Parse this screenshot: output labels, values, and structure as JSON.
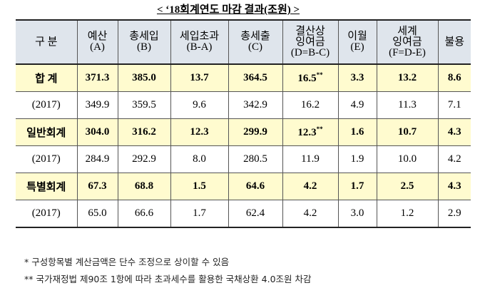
{
  "title": "< ‘18회계연도 마감 결과(조원) >",
  "table": {
    "header": [
      [
        "구  분"
      ],
      [
        "예산",
        "(A)"
      ],
      [
        "총세입",
        "(B)"
      ],
      [
        "세입초과",
        "(B-A)"
      ],
      [
        "총세출",
        "(C)"
      ],
      [
        "결산상",
        "잉여금",
        "(D=B-C)"
      ],
      [
        "이월",
        "(E)"
      ],
      [
        "세계",
        "잉여금",
        "(F=D-E)"
      ],
      [
        "불용"
      ]
    ],
    "rows": [
      {
        "highlight": true,
        "cells": [
          "합 계",
          "371.3",
          "385.0",
          "13.7",
          "364.5",
          {
            "text": "16.5",
            "mark": "**"
          },
          "3.3",
          "13.2",
          "8.6"
        ]
      },
      {
        "highlight": false,
        "cells": [
          "(2017)",
          "349.9",
          "359.5",
          "9.6",
          "342.9",
          "16.2",
          "4.9",
          "11.3",
          "7.1"
        ]
      },
      {
        "highlight": true,
        "cells": [
          "일반회계",
          "304.0",
          "316.2",
          "12.3",
          "299.9",
          {
            "text": "12.3",
            "mark": "**"
          },
          "1.6",
          "10.7",
          "4.3"
        ]
      },
      {
        "highlight": false,
        "cells": [
          "(2017)",
          "284.9",
          "292.9",
          "8.0",
          "280.5",
          "11.9",
          "1.9",
          "10.0",
          "4.2"
        ]
      },
      {
        "highlight": true,
        "cells": [
          "특별회계",
          "67.3",
          "68.8",
          "1.5",
          "64.6",
          "4.2",
          "1.7",
          "2.5",
          "4.3"
        ]
      },
      {
        "highlight": false,
        "cells": [
          "(2017)",
          "65.0",
          "66.6",
          "1.7",
          "62.4",
          "4.2",
          "3.0",
          "1.2",
          "2.9"
        ]
      }
    ]
  },
  "footnotes": [
    "* 구성항목별 계산금액은 단수 조정으로 상이할 수 있음",
    "** 국가재정법 제90조 1항에 따라 초과세수를 활용한 국채상환 4.0조원 차감"
  ]
}
